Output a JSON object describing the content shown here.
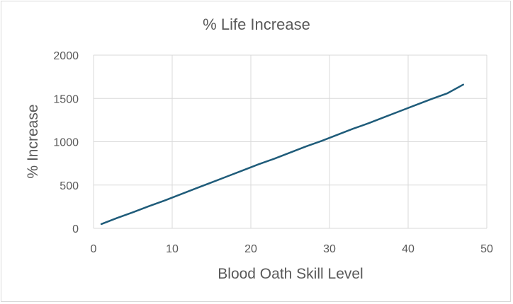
{
  "chart_data": {
    "type": "line",
    "title": "% Life Increase",
    "xlabel": "Blood Oath Skill Level",
    "ylabel": "% Increase",
    "xlim": [
      0,
      50
    ],
    "ylim": [
      0,
      2000
    ],
    "xticks": [
      "0",
      "10",
      "20",
      "30",
      "40",
      "50"
    ],
    "yticks": [
      "0",
      "500",
      "1000",
      "1500",
      "2000"
    ],
    "grid": "vertical-and-horizontal",
    "legend": "none",
    "series_color": "#1f5c7a",
    "series": [
      {
        "x": [
          1,
          3,
          5,
          7,
          9,
          11,
          13,
          15,
          17,
          19,
          21,
          23,
          25,
          27,
          29,
          31,
          33,
          35,
          37,
          39,
          41,
          43,
          45,
          47
        ],
        "y": [
          50,
          120,
          185,
          255,
          320,
          390,
          460,
          530,
          600,
          670,
          740,
          805,
          875,
          945,
          1010,
          1080,
          1150,
          1215,
          1285,
          1355,
          1425,
          1495,
          1560,
          1660
        ]
      }
    ]
  }
}
